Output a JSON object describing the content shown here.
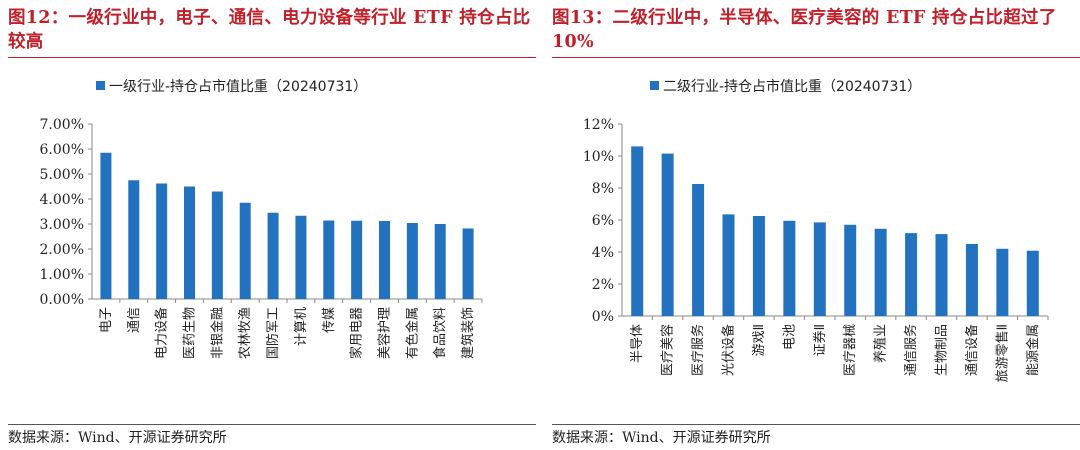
{
  "left": {
    "title": "图12：一级行业中，电子、通信、电力设备等行业 ETF 持仓占比较高",
    "source": "数据来源：Wind、开源证券研究所",
    "chart_data": {
      "type": "bar",
      "legend": "一级行业-持仓占市值比重（20240731）",
      "ylim": [
        0,
        7
      ],
      "yticks": [
        "7.00%",
        "6.00%",
        "5.00%",
        "4.00%",
        "3.00%",
        "2.00%",
        "1.00%",
        "0.00%"
      ],
      "categories": [
        "电子",
        "通信",
        "电力设备",
        "医药生物",
        "非银金融",
        "农林牧渔",
        "国防军工",
        "计算机",
        "传媒",
        "家用电器",
        "美容护理",
        "有色金属",
        "食品饮料",
        "建筑装饰"
      ],
      "values": [
        5.85,
        4.75,
        4.62,
        4.5,
        4.3,
        3.85,
        3.45,
        3.33,
        3.14,
        3.13,
        3.12,
        3.04,
        3.0,
        2.82
      ],
      "bar_color": "#2372c0"
    }
  },
  "right": {
    "title": "图13：二级行业中，半导体、医疗美容的 ETF 持仓占比超过了 10%",
    "source": "数据来源：Wind、开源证券研究所",
    "chart_data": {
      "type": "bar",
      "legend": "二级行业-持仓占市值比重（20240731）",
      "ylim": [
        0,
        12
      ],
      "yticks": [
        "12%",
        "10%",
        "8%",
        "6%",
        "4%",
        "2%",
        "0%"
      ],
      "categories": [
        "半导体",
        "医疗美容",
        "医疗服务",
        "光伏设备",
        "游戏Ⅱ",
        "电池",
        "证券Ⅱ",
        "医疗器械",
        "养殖业",
        "通信服务",
        "生物制品",
        "通信设备",
        "旅游零售Ⅱ",
        "能源金属"
      ],
      "values": [
        10.6,
        10.15,
        8.25,
        6.35,
        6.25,
        5.95,
        5.85,
        5.7,
        5.45,
        5.18,
        5.12,
        4.5,
        4.2,
        4.08
      ],
      "bar_color": "#2372c0"
    }
  }
}
